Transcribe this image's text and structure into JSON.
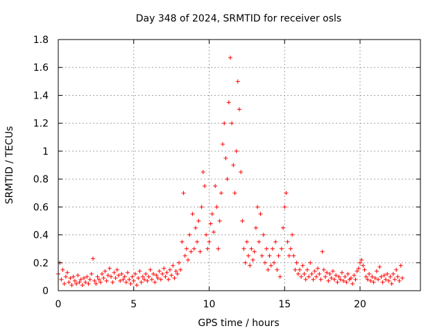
{
  "chart_data": {
    "type": "scatter",
    "title": "Day 348 of 2024, SRMTID for receiver osls",
    "xlabel": "GPS time / hours",
    "ylabel": "SRMTID / TECUs",
    "xlim": [
      0,
      24
    ],
    "ylim": [
      0,
      1.8
    ],
    "x_ticks": [
      0,
      5,
      10,
      15,
      20
    ],
    "y_ticks": [
      0,
      0.2,
      0.4,
      0.6,
      0.8,
      1,
      1.2,
      1.4,
      1.6,
      1.8
    ],
    "x_tick_labels": [
      "0",
      "5",
      "10",
      "15",
      "20"
    ],
    "y_tick_labels": [
      "0",
      "0.2",
      "0.4",
      "0.6",
      "0.8",
      "1",
      "1.2",
      "1.4",
      "1.6",
      "1.8"
    ],
    "grid": true,
    "marker": "plus",
    "color": "#ff0000",
    "series": [
      {
        "name": "SRMTID",
        "points": [
          [
            0.0,
            0.12
          ],
          [
            0.1,
            0.2
          ],
          [
            0.2,
            0.08
          ],
          [
            0.3,
            0.15
          ],
          [
            0.4,
            0.05
          ],
          [
            0.5,
            0.1
          ],
          [
            0.6,
            0.13
          ],
          [
            0.7,
            0.06
          ],
          [
            0.8,
            0.09
          ],
          [
            0.9,
            0.04
          ],
          [
            1.0,
            0.1
          ],
          [
            1.1,
            0.07
          ],
          [
            1.2,
            0.05
          ],
          [
            1.3,
            0.11
          ],
          [
            1.4,
            0.06
          ],
          [
            1.5,
            0.08
          ],
          [
            1.6,
            0.04
          ],
          [
            1.7,
            0.09
          ],
          [
            1.8,
            0.06
          ],
          [
            1.9,
            0.1
          ],
          [
            2.0,
            0.05
          ],
          [
            2.1,
            0.08
          ],
          [
            2.2,
            0.12
          ],
          [
            2.3,
            0.23
          ],
          [
            2.4,
            0.07
          ],
          [
            2.5,
            0.05
          ],
          [
            2.6,
            0.1
          ],
          [
            2.7,
            0.08
          ],
          [
            2.8,
            0.06
          ],
          [
            2.9,
            0.12
          ],
          [
            3.0,
            0.09
          ],
          [
            3.1,
            0.14
          ],
          [
            3.2,
            0.07
          ],
          [
            3.3,
            0.11
          ],
          [
            3.4,
            0.16
          ],
          [
            3.5,
            0.1
          ],
          [
            3.6,
            0.06
          ],
          [
            3.7,
            0.13
          ],
          [
            3.8,
            0.09
          ],
          [
            3.9,
            0.15
          ],
          [
            4.0,
            0.11
          ],
          [
            4.1,
            0.07
          ],
          [
            4.2,
            0.12
          ],
          [
            4.3,
            0.08
          ],
          [
            4.4,
            0.1
          ],
          [
            4.5,
            0.06
          ],
          [
            4.6,
            0.13
          ],
          [
            4.7,
            0.08
          ],
          [
            4.8,
            0.05
          ],
          [
            4.9,
            0.1
          ],
          [
            5.0,
            0.07
          ],
          [
            5.1,
            0.12
          ],
          [
            5.2,
            0.04
          ],
          [
            5.3,
            0.09
          ],
          [
            5.4,
            0.14
          ],
          [
            5.5,
            0.06
          ],
          [
            5.6,
            0.1
          ],
          [
            5.7,
            0.08
          ],
          [
            5.8,
            0.12
          ],
          [
            5.9,
            0.07
          ],
          [
            6.0,
            0.1
          ],
          [
            6.1,
            0.15
          ],
          [
            6.2,
            0.08
          ],
          [
            6.3,
            0.12
          ],
          [
            6.4,
            0.06
          ],
          [
            6.5,
            0.11
          ],
          [
            6.6,
            0.09
          ],
          [
            6.7,
            0.14
          ],
          [
            6.8,
            0.08
          ],
          [
            6.9,
            0.12
          ],
          [
            7.0,
            0.16
          ],
          [
            7.1,
            0.1
          ],
          [
            7.2,
            0.13
          ],
          [
            7.3,
            0.08
          ],
          [
            7.4,
            0.15
          ],
          [
            7.5,
            0.11
          ],
          [
            7.6,
            0.18
          ],
          [
            7.7,
            0.09
          ],
          [
            7.8,
            0.14
          ],
          [
            7.9,
            0.12
          ],
          [
            8.0,
            0.2
          ],
          [
            8.1,
            0.15
          ],
          [
            8.2,
            0.35
          ],
          [
            8.3,
            0.7
          ],
          [
            8.4,
            0.25
          ],
          [
            8.5,
            0.3
          ],
          [
            8.6,
            0.22
          ],
          [
            8.7,
            0.4
          ],
          [
            8.8,
            0.28
          ],
          [
            8.9,
            0.55
          ],
          [
            9.0,
            0.3
          ],
          [
            9.1,
            0.45
          ],
          [
            9.2,
            0.35
          ],
          [
            9.3,
            0.5
          ],
          [
            9.4,
            0.28
          ],
          [
            9.5,
            0.6
          ],
          [
            9.6,
            0.85
          ],
          [
            9.7,
            0.75
          ],
          [
            9.8,
            0.4
          ],
          [
            9.9,
            0.3
          ],
          [
            10.0,
            0.35
          ],
          [
            10.1,
            0.48
          ],
          [
            10.2,
            0.55
          ],
          [
            10.3,
            0.42
          ],
          [
            10.4,
            0.75
          ],
          [
            10.5,
            0.6
          ],
          [
            10.6,
            0.3
          ],
          [
            10.7,
            0.5
          ],
          [
            10.8,
            0.7
          ],
          [
            10.9,
            1.05
          ],
          [
            11.0,
            1.2
          ],
          [
            11.1,
            0.95
          ],
          [
            11.2,
            0.8
          ],
          [
            11.3,
            1.35
          ],
          [
            11.4,
            1.67
          ],
          [
            11.5,
            1.2
          ],
          [
            11.6,
            0.9
          ],
          [
            11.7,
            0.7
          ],
          [
            11.8,
            1.0
          ],
          [
            11.9,
            1.5
          ],
          [
            12.0,
            1.3
          ],
          [
            12.1,
            0.85
          ],
          [
            12.2,
            0.5
          ],
          [
            12.3,
            0.3
          ],
          [
            12.4,
            0.2
          ],
          [
            12.5,
            0.35
          ],
          [
            12.6,
            0.25
          ],
          [
            12.7,
            0.18
          ],
          [
            12.8,
            0.3
          ],
          [
            12.9,
            0.22
          ],
          [
            13.0,
            0.28
          ],
          [
            13.1,
            0.45
          ],
          [
            13.2,
            0.6
          ],
          [
            13.3,
            0.35
          ],
          [
            13.4,
            0.55
          ],
          [
            13.5,
            0.25
          ],
          [
            13.6,
            0.4
          ],
          [
            13.7,
            0.2
          ],
          [
            13.8,
            0.3
          ],
          [
            13.9,
            0.15
          ],
          [
            14.0,
            0.25
          ],
          [
            14.1,
            0.18
          ],
          [
            14.2,
            0.3
          ],
          [
            14.3,
            0.2
          ],
          [
            14.4,
            0.35
          ],
          [
            14.5,
            0.15
          ],
          [
            14.6,
            0.25
          ],
          [
            14.7,
            0.1
          ],
          [
            14.8,
            0.3
          ],
          [
            14.9,
            0.45
          ],
          [
            15.0,
            0.6
          ],
          [
            15.1,
            0.7
          ],
          [
            15.2,
            0.35
          ],
          [
            15.3,
            0.25
          ],
          [
            15.4,
            0.3
          ],
          [
            15.5,
            0.4
          ],
          [
            15.6,
            0.25
          ],
          [
            15.7,
            0.15
          ],
          [
            15.8,
            0.2
          ],
          [
            15.9,
            0.12
          ],
          [
            16.0,
            0.15
          ],
          [
            16.1,
            0.1
          ],
          [
            16.2,
            0.18
          ],
          [
            16.3,
            0.12
          ],
          [
            16.4,
            0.08
          ],
          [
            16.5,
            0.15
          ],
          [
            16.6,
            0.1
          ],
          [
            16.7,
            0.2
          ],
          [
            16.8,
            0.12
          ],
          [
            16.9,
            0.08
          ],
          [
            17.0,
            0.14
          ],
          [
            17.1,
            0.1
          ],
          [
            17.2,
            0.16
          ],
          [
            17.3,
            0.12
          ],
          [
            17.4,
            0.08
          ],
          [
            17.5,
            0.28
          ],
          [
            17.6,
            0.15
          ],
          [
            17.7,
            0.1
          ],
          [
            17.8,
            0.13
          ],
          [
            17.9,
            0.07
          ],
          [
            18.0,
            0.12
          ],
          [
            18.1,
            0.09
          ],
          [
            18.2,
            0.14
          ],
          [
            18.3,
            0.08
          ],
          [
            18.4,
            0.11
          ],
          [
            18.5,
            0.06
          ],
          [
            18.6,
            0.1
          ],
          [
            18.7,
            0.08
          ],
          [
            18.8,
            0.13
          ],
          [
            18.9,
            0.07
          ],
          [
            19.0,
            0.1
          ],
          [
            19.1,
            0.06
          ],
          [
            19.2,
            0.12
          ],
          [
            19.3,
            0.08
          ],
          [
            19.4,
            0.09
          ],
          [
            19.5,
            0.05
          ],
          [
            19.6,
            0.11
          ],
          [
            19.7,
            0.08
          ],
          [
            19.8,
            0.14
          ],
          [
            19.9,
            0.16
          ],
          [
            20.0,
            0.2
          ],
          [
            20.1,
            0.22
          ],
          [
            20.2,
            0.18
          ],
          [
            20.3,
            0.15
          ],
          [
            20.4,
            0.1
          ],
          [
            20.5,
            0.08
          ],
          [
            20.6,
            0.12
          ],
          [
            20.7,
            0.07
          ],
          [
            20.8,
            0.1
          ],
          [
            20.9,
            0.06
          ],
          [
            21.0,
            0.09
          ],
          [
            21.1,
            0.14
          ],
          [
            21.2,
            0.08
          ],
          [
            21.3,
            0.17
          ],
          [
            21.4,
            0.1
          ],
          [
            21.5,
            0.06
          ],
          [
            21.6,
            0.11
          ],
          [
            21.7,
            0.08
          ],
          [
            21.8,
            0.12
          ],
          [
            21.9,
            0.07
          ],
          [
            22.0,
            0.1
          ],
          [
            22.1,
            0.05
          ],
          [
            22.2,
            0.12
          ],
          [
            22.3,
            0.08
          ],
          [
            22.4,
            0.15
          ],
          [
            22.5,
            0.1
          ],
          [
            22.6,
            0.07
          ],
          [
            22.7,
            0.18
          ],
          [
            22.8,
            0.09
          ]
        ]
      }
    ]
  }
}
